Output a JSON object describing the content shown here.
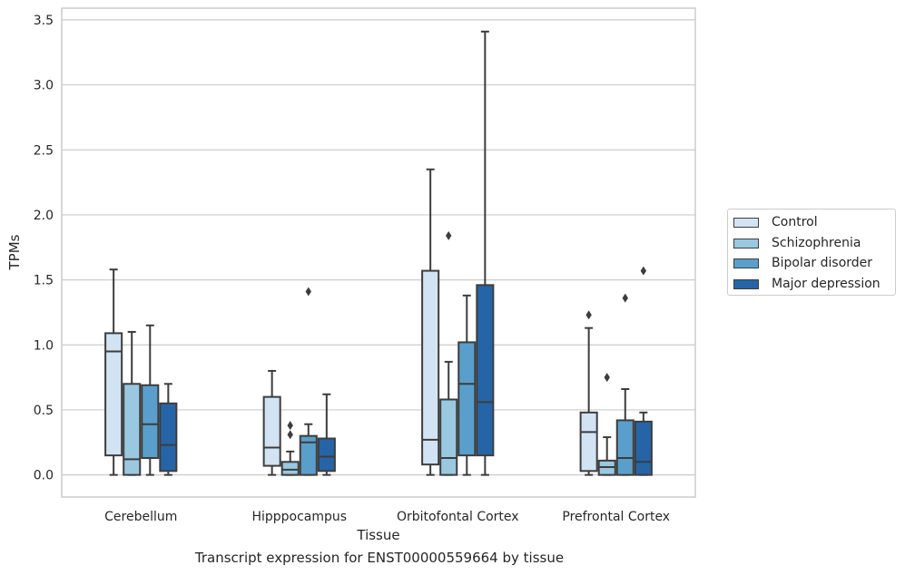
{
  "chart_data": {
    "type": "box",
    "title": "Transcript expression for ENST00000559664 by tissue",
    "xlabel": "Tissue",
    "ylabel": "TPMs",
    "ylim": [
      -0.17,
      3.59
    ],
    "yticks": [
      0.0,
      0.5,
      1.0,
      1.5,
      2.0,
      2.5,
      3.0,
      3.5
    ],
    "ytick_labels": [
      "0.0",
      "0.5",
      "1.0",
      "1.5",
      "2.0",
      "2.5",
      "3.0",
      "3.5"
    ],
    "grid": true,
    "legend_position": "right",
    "categories": [
      "Cerebellum",
      "Hipppocampus",
      "Orbitofontal Cortex",
      "Prefrontal Cortex"
    ],
    "series": [
      {
        "name": "Control",
        "color": "#d2e3f3",
        "boxes": [
          {
            "whislo": 0.0,
            "q1": 0.15,
            "med": 0.95,
            "q3": 1.09,
            "whishi": 1.58,
            "fliers": []
          },
          {
            "whislo": 0.0,
            "q1": 0.07,
            "med": 0.21,
            "q3": 0.6,
            "whishi": 0.8,
            "fliers": []
          },
          {
            "whislo": 0.0,
            "q1": 0.08,
            "med": 0.27,
            "q3": 1.57,
            "whishi": 2.35,
            "fliers": []
          },
          {
            "whislo": 0.0,
            "q1": 0.03,
            "med": 0.33,
            "q3": 0.48,
            "whishi": 1.13,
            "fliers": [
              1.23
            ]
          }
        ]
      },
      {
        "name": "Schizophrenia",
        "color": "#9ac8e0",
        "boxes": [
          {
            "whislo": 0.0,
            "q1": 0.0,
            "med": 0.12,
            "q3": 0.7,
            "whishi": 1.1,
            "fliers": []
          },
          {
            "whislo": 0.0,
            "q1": 0.0,
            "med": 0.04,
            "q3": 0.1,
            "whishi": 0.18,
            "fliers": [
              0.31,
              0.38
            ]
          },
          {
            "whislo": 0.0,
            "q1": 0.0,
            "med": 0.13,
            "q3": 0.58,
            "whishi": 0.87,
            "fliers": [
              1.84
            ]
          },
          {
            "whislo": 0.0,
            "q1": 0.0,
            "med": 0.06,
            "q3": 0.11,
            "whishi": 0.29,
            "fliers": [
              0.75
            ]
          }
        ]
      },
      {
        "name": "Bipolar disorder",
        "color": "#5a9fcc",
        "boxes": [
          {
            "whislo": 0.0,
            "q1": 0.13,
            "med": 0.39,
            "q3": 0.69,
            "whishi": 1.15,
            "fliers": []
          },
          {
            "whislo": 0.0,
            "q1": 0.0,
            "med": 0.25,
            "q3": 0.3,
            "whishi": 0.39,
            "fliers": [
              1.41
            ]
          },
          {
            "whislo": 0.0,
            "q1": 0.15,
            "med": 0.7,
            "q3": 1.02,
            "whishi": 1.38,
            "fliers": []
          },
          {
            "whislo": 0.0,
            "q1": 0.0,
            "med": 0.13,
            "q3": 0.42,
            "whishi": 0.66,
            "fliers": [
              1.36
            ]
          }
        ]
      },
      {
        "name": "Major depression",
        "color": "#2565a7",
        "boxes": [
          {
            "whislo": 0.0,
            "q1": 0.03,
            "med": 0.23,
            "q3": 0.55,
            "whishi": 0.7,
            "fliers": []
          },
          {
            "whislo": 0.0,
            "q1": 0.03,
            "med": 0.14,
            "q3": 0.28,
            "whishi": 0.62,
            "fliers": []
          },
          {
            "whislo": 0.0,
            "q1": 0.15,
            "med": 0.56,
            "q3": 1.46,
            "whishi": 3.41,
            "fliers": []
          },
          {
            "whislo": 0.0,
            "q1": 0.0,
            "med": 0.1,
            "q3": 0.41,
            "whishi": 0.48,
            "fliers": [
              1.57
            ]
          }
        ]
      }
    ]
  }
}
